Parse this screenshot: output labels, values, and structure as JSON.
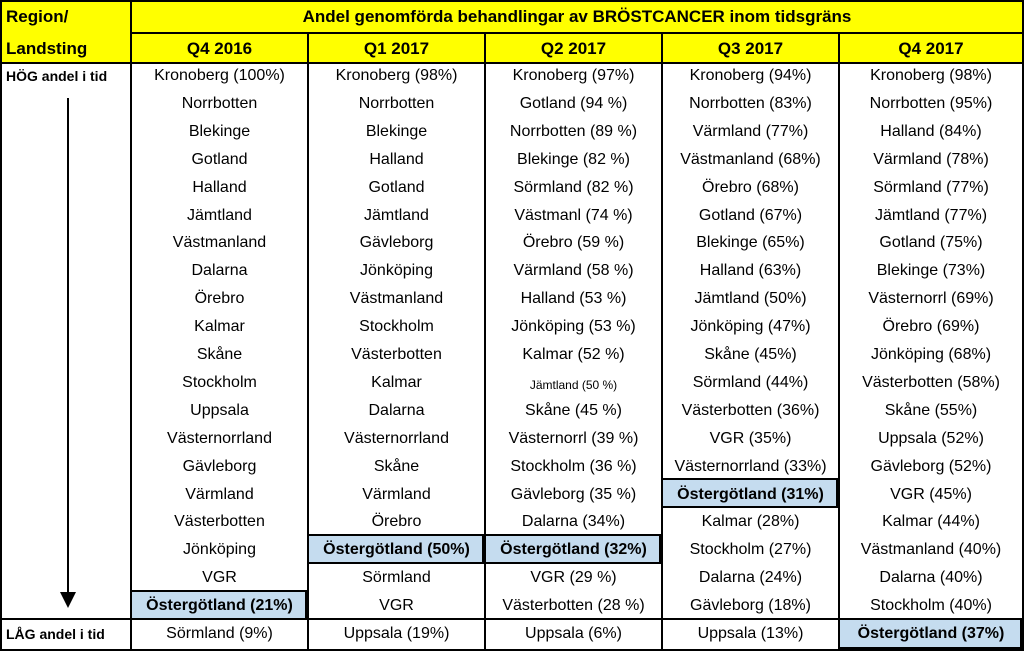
{
  "header": {
    "region_label_1": "Region/",
    "region_label_2": "Landsting",
    "title": "Andel genomförda behandlingar av BRÖSTCANCER inom tidsgräns",
    "quarters": [
      "Q4 2016",
      "Q1 2017",
      "Q2 2017",
      "Q3 2017",
      "Q4 2017"
    ]
  },
  "side": {
    "top_label": "HÖG andel i tid",
    "bottom_label": "LÅG andel i tid",
    "arrow_icon": "down-arrow-icon"
  },
  "colors": {
    "header_yellow": "#ffff00",
    "highlight_blue": "#c5dcef"
  },
  "columns": [
    [
      "Kronoberg (100%)",
      "Norrbotten",
      "Blekinge",
      "Gotland",
      "Halland",
      "Jämtland",
      "Västmanland",
      "Dalarna",
      "Örebro",
      "Kalmar",
      "Skåne",
      "Stockholm",
      "Uppsala",
      "Västernorrland",
      "Gävleborg",
      "Värmland",
      "Västerbotten",
      "Jönköping",
      "VGR",
      "Östergötland (21%)",
      "Sörmland (9%)"
    ],
    [
      "Kronoberg (98%)",
      "Norrbotten",
      "Blekinge",
      "Halland",
      "Gotland",
      "Jämtland",
      "Gävleborg",
      "Jönköping",
      "Västmanland",
      "Stockholm",
      "Västerbotten",
      "Kalmar",
      "Dalarna",
      "Västernorrland",
      "Skåne",
      "Värmland",
      "Örebro",
      "Östergötland (50%)",
      "Sörmland",
      "VGR",
      "Uppsala (19%)"
    ],
    [
      "Kronoberg (97%)",
      "Gotland (94 %)",
      "Norrbotten (89 %)",
      "Blekinge (82 %)",
      "Sörmland (82 %)",
      "Västmanl (74 %)",
      "Örebro (59 %)",
      "Värmland (58 %)",
      "Halland (53 %)",
      "Jönköping (53 %)",
      "Kalmar (52 %)",
      "Jämtland (50 %)",
      "Skåne (45 %)",
      "Västernorrl (39 %)",
      "Stockholm (36 %)",
      "Gävleborg (35 %)",
      "Dalarna (34%)",
      "Östergötland (32%)",
      "VGR (29 %)",
      "Västerbotten (28 %)",
      "Uppsala (6%)"
    ],
    [
      "Kronoberg (94%)",
      "Norrbotten (83%)",
      "Värmland (77%)",
      "Västmanland (68%)",
      "Örebro (68%)",
      "Gotland (67%)",
      "Blekinge (65%)",
      "Halland (63%)",
      "Jämtland (50%)",
      "Jönköping (47%)",
      "Skåne (45%)",
      "Sörmland (44%)",
      "Västerbotten (36%)",
      "VGR (35%)",
      "Västernorrland (33%)",
      "Östergötland (31%)",
      "Kalmar (28%)",
      "Stockholm (27%)",
      "Dalarna (24%)",
      "Gävleborg (18%)",
      "Uppsala (13%)"
    ],
    [
      "Kronoberg (98%)",
      "Norrbotten (95%)",
      "Halland (84%)",
      "Värmland (78%)",
      "Sörmland (77%)",
      "Jämtland (77%)",
      "Gotland (75%)",
      "Blekinge (73%)",
      "Västernorrl (69%)",
      "Örebro (69%)",
      "Jönköping (68%)",
      "Västerbotten (58%)",
      "Skåne (55%)",
      "Uppsala (52%)",
      "Gävleborg (52%)",
      "VGR (45%)",
      "Kalmar (44%)",
      "Västmanland (40%)",
      "Dalarna (40%)",
      "Stockholm (40%)",
      "Östergötland (37%)"
    ]
  ]
}
